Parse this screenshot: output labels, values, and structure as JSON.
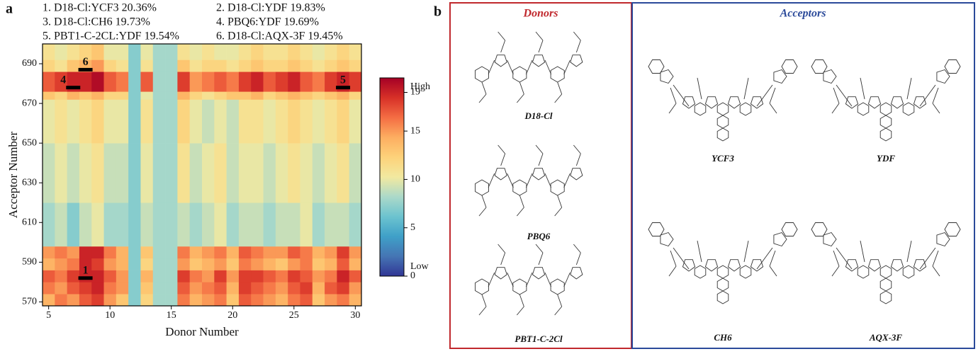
{
  "chart_data": {
    "type": "heatmap",
    "panel_label": "a",
    "legend_lines": [
      "1. D18-Cl:YCF3  20.36%",
      "2. D18-Cl:YDF  19.83%",
      "3. D18-Cl:CH6  19.73%",
      "4. PBQ6:YDF  19.69%",
      "5. PBT1-C-2CL:YDF  19.54%",
      "6. D18-Cl:AQX-3F  19.45%"
    ],
    "x_label": "Donor Number",
    "y_label": "Acceptor Number",
    "x": [
      5,
      6,
      7,
      8,
      9,
      10,
      11,
      12,
      13,
      14,
      15,
      16,
      17,
      18,
      19,
      20,
      21,
      22,
      23,
      24,
      25,
      26,
      27,
      28,
      29,
      30
    ],
    "y_bins": [
      568,
      574,
      580,
      586,
      592,
      598,
      620,
      650,
      672,
      676,
      686,
      692,
      700
    ],
    "values": [
      [
        14,
        16,
        15,
        17,
        18,
        15,
        13,
        7,
        12,
        8,
        8,
        16,
        14,
        15,
        16,
        13,
        17,
        16,
        15,
        14,
        16,
        17,
        13,
        15,
        16,
        14
      ],
      [
        16,
        15,
        17,
        18,
        19,
        16,
        15,
        7,
        13,
        8,
        8,
        17,
        15,
        16,
        17,
        14,
        18,
        17,
        16,
        15,
        17,
        18,
        14,
        17,
        18,
        15
      ],
      [
        17,
        16,
        18,
        19,
        19,
        17,
        15,
        7,
        14,
        8,
        8,
        18,
        16,
        15,
        18,
        15,
        18,
        18,
        17,
        16,
        18,
        17,
        15,
        16,
        19,
        17
      ],
      [
        14,
        15,
        16,
        19,
        18,
        15,
        14,
        7,
        12,
        8,
        8,
        15,
        13,
        14,
        15,
        13,
        16,
        15,
        14,
        13,
        15,
        16,
        13,
        14,
        17,
        14
      ],
      [
        15,
        16,
        15,
        19,
        19,
        16,
        14,
        7,
        13,
        8,
        8,
        16,
        14,
        15,
        16,
        14,
        17,
        16,
        15,
        15,
        17,
        16,
        14,
        15,
        18,
        15
      ],
      [
        8,
        9,
        7,
        9,
        10,
        8,
        8,
        7,
        9,
        8,
        8,
        9,
        8,
        9,
        10,
        8,
        9,
        9,
        8,
        9,
        9,
        10,
        8,
        9,
        9,
        8
      ],
      [
        9,
        10,
        9,
        10,
        11,
        9,
        9,
        7,
        10,
        8,
        8,
        11,
        9,
        10,
        11,
        9,
        10,
        10,
        9,
        10,
        11,
        10,
        9,
        10,
        11,
        9
      ],
      [
        10,
        11,
        10,
        11,
        12,
        10,
        10,
        7,
        11,
        8,
        8,
        12,
        10,
        9,
        10,
        9,
        11,
        11,
        10,
        11,
        12,
        11,
        10,
        11,
        12,
        10
      ],
      [
        13,
        12,
        14,
        13,
        14,
        12,
        12,
        7,
        10,
        8,
        8,
        14,
        12,
        11,
        12,
        13,
        13,
        14,
        12,
        13,
        14,
        13,
        12,
        13,
        14,
        12
      ],
      [
        17,
        18,
        19,
        19,
        20,
        17,
        16,
        7,
        17,
        8,
        8,
        18,
        15,
        16,
        17,
        16,
        18,
        19,
        17,
        18,
        19,
        17,
        16,
        18,
        19,
        18
      ],
      [
        12,
        11,
        13,
        14,
        15,
        12,
        11,
        7,
        11,
        8,
        8,
        13,
        11,
        12,
        12,
        11,
        12,
        13,
        12,
        12,
        13,
        12,
        11,
        12,
        13,
        12
      ],
      [
        11,
        10,
        11,
        12,
        13,
        10,
        10,
        7,
        10,
        8,
        8,
        11,
        10,
        11,
        10,
        10,
        11,
        12,
        11,
        11,
        12,
        11,
        10,
        11,
        12,
        11
      ]
    ],
    "xlim": [
      4.5,
      30.5
    ],
    "ylim": [
      568,
      700
    ],
    "xticks": [
      5,
      10,
      15,
      20,
      25,
      30
    ],
    "yticks": [
      570,
      590,
      610,
      630,
      650,
      670,
      690
    ],
    "clim": [
      0,
      20.5
    ],
    "cticks": [
      0,
      5,
      10,
      15,
      19
    ],
    "colorbar_high": "High",
    "colorbar_low": "Low",
    "colormap": [
      "#313695",
      "#4575b4",
      "#3fa0c8",
      "#6cc3cf",
      "#abd9c9",
      "#f2e9a0",
      "#fdd27a",
      "#fdae61",
      "#f46d43",
      "#d73027",
      "#a50026"
    ],
    "markers": [
      {
        "label": "1",
        "x": 8,
        "y": 582
      },
      {
        "label": "4",
        "x": 7,
        "y": 678
      },
      {
        "label": "6",
        "x": 8,
        "y": 687
      },
      {
        "label": "5",
        "x": 29,
        "y": 678
      }
    ]
  },
  "structures_panel": {
    "label": "b",
    "donors_title": "Donors",
    "acceptors_title": "Acceptors",
    "donors": [
      "D18-Cl",
      "PBQ6",
      "PBT1-C-2Cl"
    ],
    "acceptors": [
      "YCF3",
      "YDF",
      "CH6",
      "AQX-3F"
    ]
  }
}
